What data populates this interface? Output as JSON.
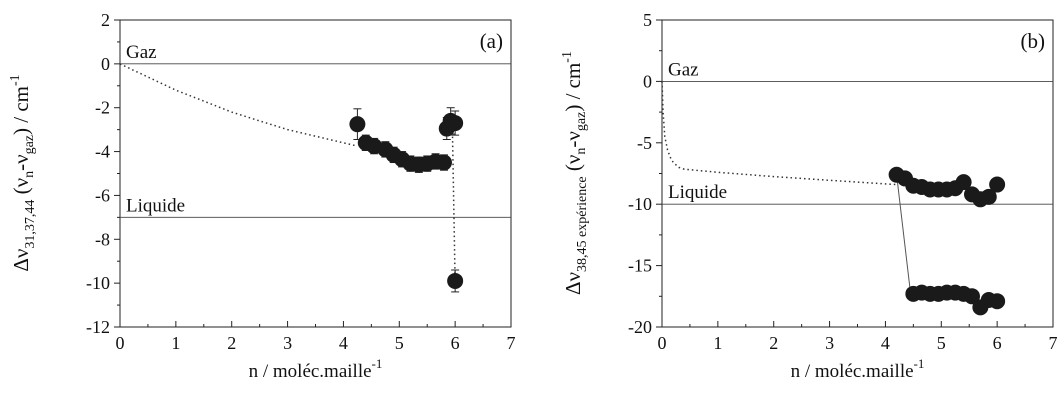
{
  "chart_data": [
    {
      "type": "scatter",
      "panel_label": "(a)",
      "xlabel": "n / moléc.maille",
      "xlabel_sup": "-1",
      "ylabel_parts": [
        "Δν",
        "31,37,44",
        " (ν",
        "n",
        "-ν",
        "gaz",
        ") / cm",
        "-1"
      ],
      "xlim": [
        0,
        7
      ],
      "ylim": [
        -12,
        2
      ],
      "x_ticks": [
        0,
        1,
        2,
        3,
        4,
        5,
        6,
        7
      ],
      "y_ticks": [
        2,
        0,
        -2,
        -4,
        -6,
        -8,
        -10,
        -12
      ],
      "grid": false,
      "ref_lines": [
        {
          "name": "Gaz",
          "y": 0
        },
        {
          "name": "Liquide",
          "y": -7
        }
      ],
      "series": [
        {
          "style": "markers",
          "x": [
            4.25,
            4.4,
            4.55,
            4.75,
            4.9,
            5.05,
            5.2,
            5.35,
            5.5,
            5.65,
            5.8,
            5.85,
            5.92,
            6.0,
            6.0
          ],
          "y": [
            -2.75,
            -3.6,
            -3.75,
            -3.9,
            -4.15,
            -4.35,
            -4.55,
            -4.6,
            -4.55,
            -4.45,
            -4.5,
            -2.95,
            -2.6,
            -2.7,
            -9.9
          ],
          "yerr": [
            0.7,
            0.35,
            0.35,
            0.35,
            0.35,
            0.35,
            0.35,
            0.35,
            0.35,
            0.35,
            0.35,
            0.5,
            0.6,
            0.55,
            0.5
          ]
        },
        {
          "style": "dotted",
          "x": [
            0,
            0.5,
            1,
            1.5,
            2,
            2.5,
            3,
            3.5,
            4,
            4.25
          ],
          "y": [
            0,
            -0.6,
            -1.2,
            -1.7,
            -2.2,
            -2.6,
            -3.0,
            -3.3,
            -3.6,
            -3.75
          ]
        },
        {
          "style": "dotted",
          "x": [
            5.95,
            6.0
          ],
          "y": [
            -2.7,
            -9.9
          ]
        }
      ]
    },
    {
      "type": "scatter",
      "panel_label": "(b)",
      "xlabel": "n / moléc.maille",
      "xlabel_sup": "-1",
      "ylabel_parts": [
        "Δν",
        "38,45 expérience",
        " (ν",
        "n",
        "-ν",
        "gaz",
        ") / cm",
        "-1"
      ],
      "xlim": [
        0,
        7
      ],
      "ylim": [
        -20,
        5
      ],
      "x_ticks": [
        0,
        1,
        2,
        3,
        4,
        5,
        6,
        7
      ],
      "y_ticks": [
        5,
        0,
        -5,
        -10,
        -15,
        -20
      ],
      "grid": false,
      "ref_lines": [
        {
          "name": "Gaz",
          "y": 0
        },
        {
          "name": "Liquide",
          "y": -10
        }
      ],
      "series": [
        {
          "style": "markers",
          "x": [
            4.2,
            4.35,
            4.5,
            4.65,
            4.8,
            4.95,
            5.1,
            5.25,
            5.4,
            5.55,
            5.7,
            5.85,
            6.0
          ],
          "y": [
            -7.6,
            -7.9,
            -8.5,
            -8.6,
            -8.8,
            -8.8,
            -8.8,
            -8.7,
            -8.2,
            -9.2,
            -9.6,
            -9.4,
            -8.4
          ],
          "yerr": [
            0.3,
            0.3,
            0.3,
            0.3,
            0.3,
            0.3,
            0.3,
            0.3,
            0.3,
            0.3,
            0.3,
            0.3,
            0.3
          ]
        },
        {
          "style": "markers",
          "x": [
            4.5,
            4.65,
            4.8,
            4.95,
            5.1,
            5.25,
            5.4,
            5.55,
            5.7,
            5.85,
            6.0
          ],
          "y": [
            -17.3,
            -17.2,
            -17.3,
            -17.3,
            -17.2,
            -17.2,
            -17.3,
            -17.5,
            -18.4,
            -17.8,
            -17.9
          ],
          "yerr": [
            0.4,
            0.4,
            0.4,
            0.4,
            0.4,
            0.4,
            0.4,
            0.4,
            0.4,
            0.4,
            0.4
          ]
        },
        {
          "style": "dotted",
          "x": [
            0,
            0.02,
            0.05,
            0.1,
            0.15,
            0.2,
            0.3,
            0.4,
            1,
            2,
            3,
            4,
            4.2
          ],
          "y": [
            0,
            -2.5,
            -4.5,
            -5.6,
            -6.2,
            -6.6,
            -7.0,
            -7.15,
            -7.4,
            -7.75,
            -8.05,
            -8.35,
            -8.4
          ]
        },
        {
          "style": "line",
          "x": [
            4.2,
            4.45
          ],
          "y": [
            -7.6,
            -17.3
          ]
        }
      ]
    }
  ]
}
